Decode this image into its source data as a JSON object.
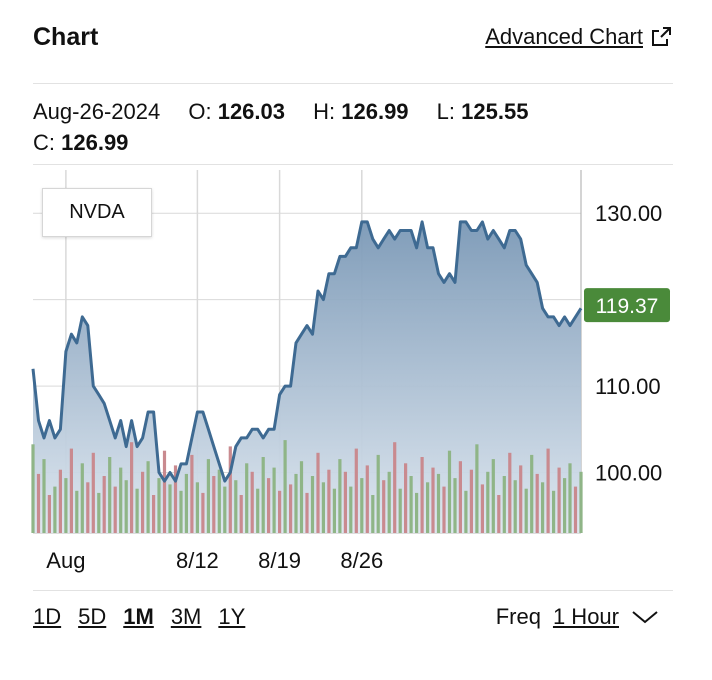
{
  "header": {
    "title": "Chart",
    "advanced_label": "Advanced Chart"
  },
  "ohlc": {
    "date": "Aug-26-2024",
    "open_label": "O:",
    "open": "126.03",
    "high_label": "H:",
    "high": "126.99",
    "low_label": "L:",
    "low": "125.55",
    "close_label": "C:",
    "close": "126.99"
  },
  "legend": {
    "symbol": "NVDA"
  },
  "chart_data": {
    "type": "area",
    "symbol": "NVDA",
    "ylim": [
      93,
      135
    ],
    "y_ticks": [
      100,
      110,
      130
    ],
    "y_tick_labels": [
      "100.00",
      "110.00",
      "130.00"
    ],
    "current_price": 119.37,
    "current_price_label": "119.37",
    "x_tick_labels": [
      "Aug",
      "8/12",
      "8/19",
      "8/26"
    ],
    "x_tick_index": [
      6,
      30,
      45,
      60
    ],
    "series": [
      {
        "values": [
          112,
          106,
          104,
          106,
          104,
          105,
          114,
          116,
          115,
          118,
          117,
          110,
          109,
          108,
          106,
          104,
          106,
          103,
          106,
          103,
          104,
          107,
          107,
          100,
          99,
          100,
          99,
          101,
          101,
          104,
          107,
          107,
          105,
          103,
          101,
          99,
          100,
          103,
          104,
          104,
          105,
          105,
          104,
          105,
          105,
          109,
          110,
          110,
          115,
          116,
          117,
          116,
          121,
          120,
          123,
          123,
          125,
          125,
          126,
          126,
          129,
          129,
          127,
          126,
          127,
          128,
          127,
          128,
          128,
          128,
          126,
          129,
          126,
          126,
          123,
          122,
          123,
          122,
          129,
          129,
          128,
          128,
          129,
          127,
          128,
          127,
          126,
          128,
          128,
          127,
          124,
          123,
          122,
          119,
          118,
          118,
          117,
          118,
          117,
          118,
          119
        ]
      }
    ],
    "volume": [
      0.42,
      0.28,
      0.35,
      0.18,
      0.22,
      0.3,
      0.26,
      0.4,
      0.2,
      0.33,
      0.24,
      0.38,
      0.19,
      0.27,
      0.36,
      0.22,
      0.31,
      0.25,
      0.43,
      0.21,
      0.29,
      0.34,
      0.18,
      0.26,
      0.39,
      0.23,
      0.32,
      0.2,
      0.28,
      0.37,
      0.24,
      0.19,
      0.35,
      0.27,
      0.3,
      0.22,
      0.41,
      0.25,
      0.18,
      0.33,
      0.29,
      0.21,
      0.36,
      0.26,
      0.31,
      0.2,
      0.44,
      0.23,
      0.28,
      0.34,
      0.19,
      0.27,
      0.38,
      0.24,
      0.3,
      0.21,
      0.35,
      0.29,
      0.22,
      0.4,
      0.26,
      0.32,
      0.18,
      0.37,
      0.25,
      0.29,
      0.43,
      0.21,
      0.33,
      0.27,
      0.19,
      0.36,
      0.24,
      0.31,
      0.28,
      0.22,
      0.39,
      0.26,
      0.34,
      0.2,
      0.3,
      0.42,
      0.23,
      0.29,
      0.35,
      0.18,
      0.27,
      0.38,
      0.25,
      0.32,
      0.21,
      0.37,
      0.28,
      0.24,
      0.4,
      0.2,
      0.31,
      0.26,
      0.33,
      0.22,
      0.29
    ],
    "volume_up": [
      true,
      false,
      true,
      false,
      true,
      false,
      true,
      false,
      true,
      true,
      false,
      false,
      true,
      false,
      true,
      false,
      true,
      true,
      false,
      true,
      false,
      true,
      false,
      true,
      false,
      true,
      false,
      true,
      true,
      false,
      true,
      false,
      true,
      false,
      true,
      true,
      false,
      true,
      false,
      true,
      false,
      true,
      true,
      false,
      true,
      false,
      true,
      false,
      true,
      true,
      false,
      true,
      false,
      true,
      false,
      true,
      true,
      false,
      true,
      false,
      true,
      false,
      true,
      true,
      false,
      true,
      false,
      true,
      false,
      true,
      true,
      false,
      true,
      false,
      true,
      false,
      true,
      true,
      false,
      true,
      false,
      true,
      false,
      true,
      true,
      false,
      true,
      false,
      true,
      false,
      true,
      true,
      false,
      true,
      false,
      true,
      false,
      true,
      true,
      false,
      true
    ]
  },
  "colors": {
    "line": "#3e6a92",
    "area_top": "#7a98b6",
    "area_bottom": "#dde6ef",
    "price_tag": "#4a8a3a",
    "vol_up": "#8fb587",
    "vol_down": "#c98a8f",
    "grid": "#d9d9d9"
  },
  "footer": {
    "ranges": [
      "1D",
      "5D",
      "1M",
      "3M",
      "1Y"
    ],
    "active_range": "1M",
    "freq_label": "Freq",
    "freq_value": "1 Hour"
  }
}
